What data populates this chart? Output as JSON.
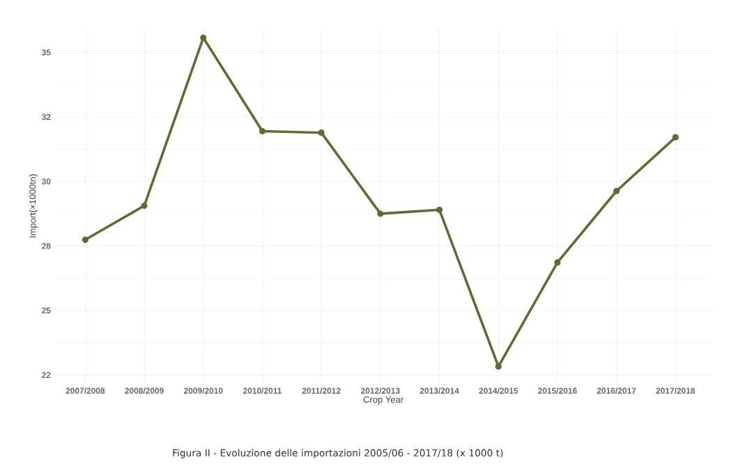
{
  "chart_data": {
    "type": "line",
    "xlabel": "Crop Year",
    "ylabel": "Import(×1000tn)",
    "categories": [
      "2007/2008",
      "2008/2009",
      "2009/2010",
      "2010/2011",
      "2011/2012",
      "2012/2013",
      "2013/2014",
      "2014/2015",
      "2015/2016",
      "2016/2017",
      "2017/2018"
    ],
    "series": [
      {
        "color": "#5a6e34",
        "values": [
          27.74,
          29.06,
          35.57,
          31.95,
          31.89,
          28.75,
          28.9,
          22.83,
          26.86,
          29.63,
          31.71
        ]
      }
    ],
    "ylim": [
      22.2,
      35.9
    ],
    "yticks": [
      {
        "value": 22.5,
        "label": "22"
      },
      {
        "value": 25,
        "label": "25"
      },
      {
        "value": 27.5,
        "label": "28"
      },
      {
        "value": 30,
        "label": "30"
      },
      {
        "value": 32.5,
        "label": "32"
      },
      {
        "value": 35,
        "label": "35"
      }
    ],
    "grid": true,
    "marker": "circle",
    "line_style": "solid",
    "annotations": [
      "Figura II - Evoluzione delle importazioni 2005/06 - 2017/18 (x 1000 t)"
    ]
  }
}
